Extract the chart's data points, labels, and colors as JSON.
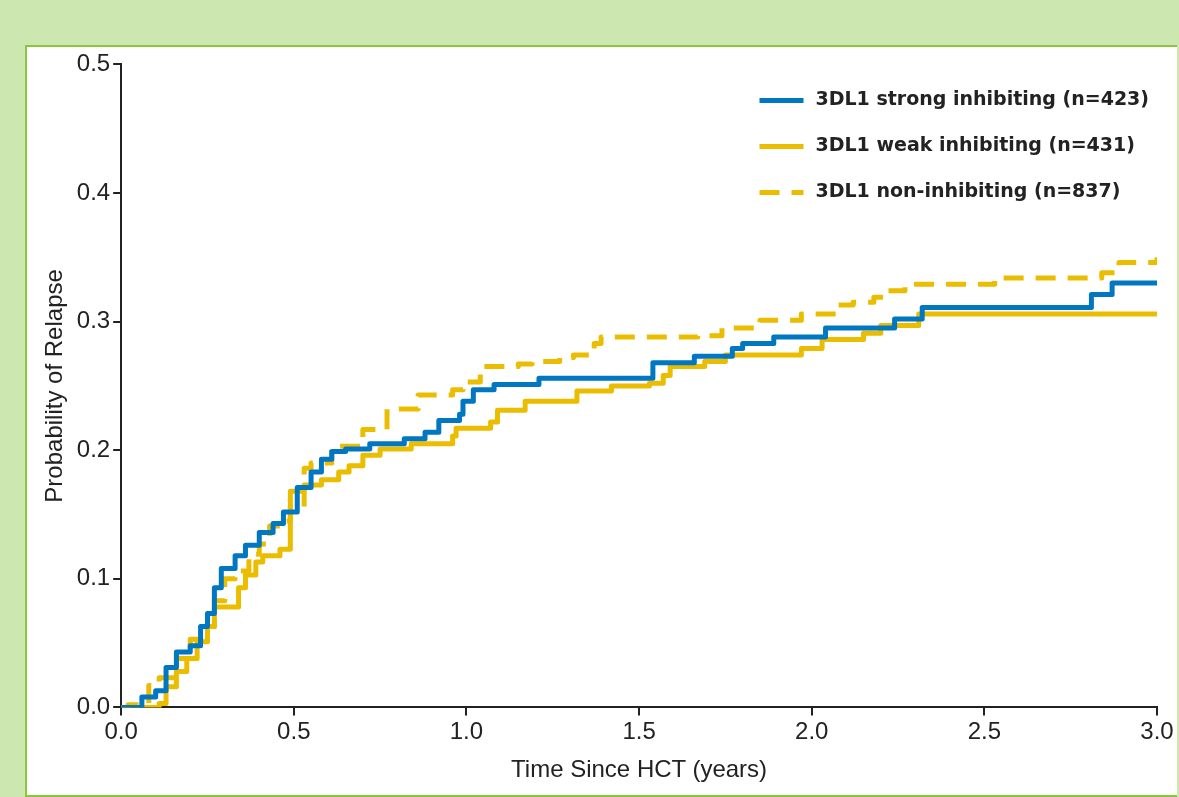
{
  "chart_data": {
    "type": "step",
    "xlabel": "Time Since HCT (years)",
    "ylabel": "Probability of Relapse",
    "xlim": [
      0,
      3
    ],
    "ylim": [
      0,
      0.5
    ],
    "xticks": [
      {
        "value": 0,
        "label": "0.0"
      },
      {
        "value": 0.5,
        "label": "0.5"
      },
      {
        "value": 1,
        "label": "1.0"
      },
      {
        "value": 1.5,
        "label": "1.5"
      },
      {
        "value": 2,
        "label": "2.0"
      },
      {
        "value": 2.5,
        "label": "2.5"
      },
      {
        "value": 3,
        "label": "3.0"
      }
    ],
    "yticks": [
      {
        "value": 0,
        "label": "0.0"
      },
      {
        "value": 0.1,
        "label": "0.1"
      },
      {
        "value": 0.2,
        "label": "0.2"
      },
      {
        "value": 0.3,
        "label": "0.3"
      },
      {
        "value": 0.4,
        "label": "0.4"
      },
      {
        "value": 0.5,
        "label": "0.5"
      }
    ],
    "grid": false,
    "legend": "top right",
    "marker": "none",
    "series": [
      {
        "name": "3DL1 strong inhibiting (n=423)",
        "color": "#0077c0",
        "line_style": "solid",
        "x": [
          0,
          0.06,
          0.1,
          0.13,
          0.16,
          0.2,
          0.23,
          0.25,
          0.27,
          0.29,
          0.33,
          0.36,
          0.4,
          0.44,
          0.47,
          0.51,
          0.55,
          0.58,
          0.61,
          0.65,
          0.72,
          0.82,
          0.88,
          0.92,
          0.98,
          0.99,
          1.02,
          1.08,
          1.21,
          1.54,
          1.66,
          1.77,
          1.8,
          1.89,
          2.04,
          2.24,
          2.32,
          2.81,
          2.87,
          3.0
        ],
        "values": [
          0,
          0.008,
          0.013,
          0.031,
          0.043,
          0.048,
          0.063,
          0.073,
          0.093,
          0.108,
          0.118,
          0.126,
          0.136,
          0.143,
          0.152,
          0.171,
          0.183,
          0.193,
          0.199,
          0.201,
          0.205,
          0.209,
          0.214,
          0.223,
          0.228,
          0.238,
          0.247,
          0.251,
          0.256,
          0.268,
          0.273,
          0.279,
          0.283,
          0.288,
          0.295,
          0.302,
          0.311,
          0.321,
          0.33,
          0.33
        ]
      },
      {
        "name": "3DL1 weak inhibiting (n=431)",
        "color": "#ebbd00",
        "line_style": "solid",
        "x": [
          0,
          0.11,
          0.13,
          0.16,
          0.19,
          0.22,
          0.25,
          0.27,
          0.34,
          0.36,
          0.39,
          0.41,
          0.46,
          0.49,
          0.53,
          0.58,
          0.63,
          0.66,
          0.7,
          0.75,
          0.84,
          0.96,
          0.97,
          1.07,
          1.09,
          1.17,
          1.32,
          1.42,
          1.53,
          1.57,
          1.59,
          1.69,
          1.75,
          1.97,
          2.03,
          2.15,
          2.2,
          2.31,
          3.0
        ],
        "values": [
          0,
          0.003,
          0.016,
          0.028,
          0.038,
          0.051,
          0.063,
          0.078,
          0.093,
          0.103,
          0.113,
          0.118,
          0.123,
          0.168,
          0.173,
          0.177,
          0.183,
          0.188,
          0.196,
          0.201,
          0.205,
          0.211,
          0.217,
          0.222,
          0.231,
          0.238,
          0.246,
          0.25,
          0.252,
          0.258,
          0.265,
          0.269,
          0.274,
          0.279,
          0.286,
          0.291,
          0.297,
          0.306,
          0.306
        ]
      },
      {
        "name": "3DL1 non-inhibiting (n=837)",
        "color": "#ebbd00",
        "line_style": "dashed",
        "x": [
          0,
          0.02,
          0.08,
          0.11,
          0.16,
          0.2,
          0.25,
          0.27,
          0.3,
          0.33,
          0.37,
          0.4,
          0.43,
          0.46,
          0.49,
          0.53,
          0.55,
          0.61,
          0.7,
          0.77,
          0.86,
          0.96,
          0.99,
          1.04,
          1.15,
          1.19,
          1.27,
          1.31,
          1.37,
          1.39,
          1.67,
          1.74,
          1.85,
          1.97,
          2.07,
          2.12,
          2.18,
          2.21,
          2.27,
          2.53,
          2.84,
          2.89,
          3.0
        ],
        "values": [
          0,
          0.002,
          0.017,
          0.023,
          0.038,
          0.053,
          0.063,
          0.083,
          0.1,
          0.106,
          0.119,
          0.127,
          0.141,
          0.145,
          0.156,
          0.186,
          0.19,
          0.203,
          0.216,
          0.232,
          0.243,
          0.247,
          0.253,
          0.265,
          0.267,
          0.269,
          0.272,
          0.274,
          0.283,
          0.288,
          0.289,
          0.295,
          0.301,
          0.306,
          0.313,
          0.315,
          0.319,
          0.324,
          0.329,
          0.334,
          0.338,
          0.346,
          0.35
        ]
      }
    ]
  }
}
